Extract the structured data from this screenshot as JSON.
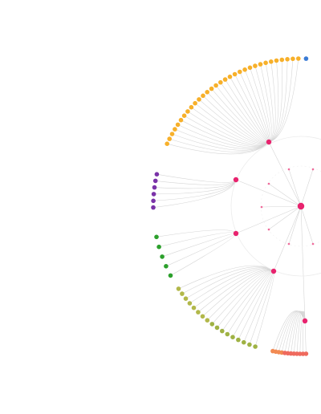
{
  "diagram": {
    "type": "radial-hierarchy",
    "colors": {
      "edge": "#d6d6d6",
      "root": "#e8236e",
      "hub": "#e8236e",
      "sub_hub": "#f06a9a",
      "orange": "#f7b02a",
      "blue": "#3a7bd5",
      "purple": "#7a33a8",
      "green": "#2ca02c",
      "olive": "#a9b84a",
      "coral": "#f0755a"
    },
    "groups": [
      {
        "name": "orange",
        "leaf_count": 31
      },
      {
        "name": "purple",
        "leaf_count": 6
      },
      {
        "name": "green",
        "leaf_count": 5
      },
      {
        "name": "olive",
        "leaf_count": 17
      },
      {
        "name": "coral",
        "leaf_count": 12
      }
    ]
  }
}
